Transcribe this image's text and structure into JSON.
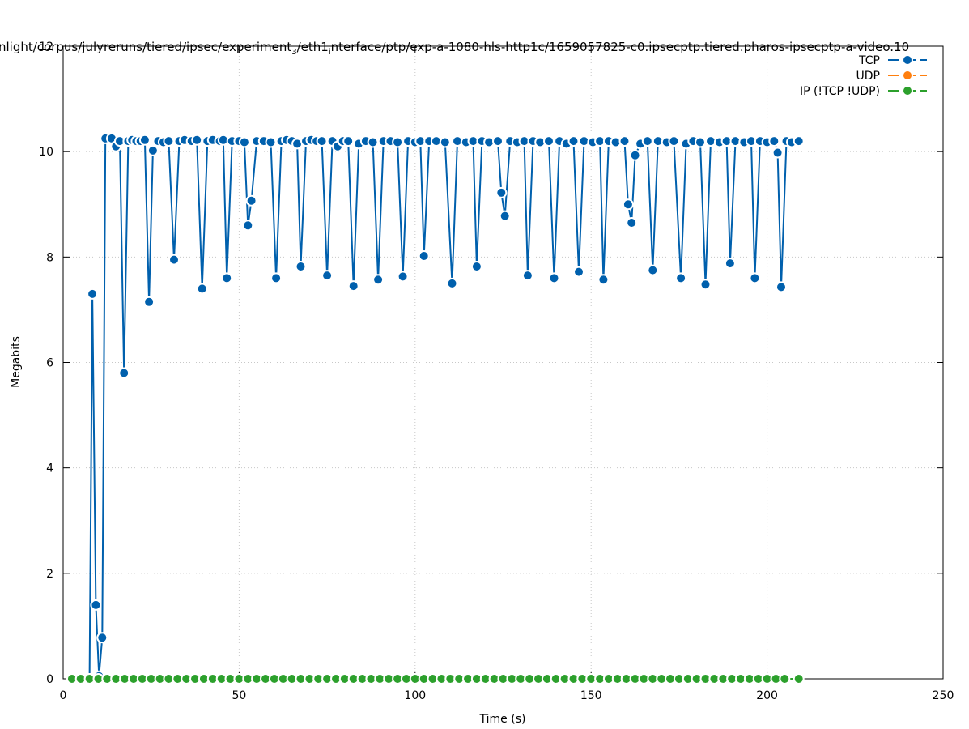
{
  "chart_data": {
    "type": "line",
    "title": "nlight/corpus/julyreruns/tiered/ipsec/experiment_3/eth1_interface/ptp/exp-a-1080-hls-http1c/1659057825-c0.ipsecptp.tiered.pharos-ipsecptp-a-video.10",
    "title_parts": {
      "a": "nlight/corpus/julyreruns/tiered/ipsec/experiment",
      "a_sub": "3",
      "b": "/eth1",
      "b_sub": "i",
      "c": "nterface/ptp/exp-a-1080-hls-http1c/1659057825-c0.ipsecptp.tiered.pharos-ipsecptp-a-video.10"
    },
    "xlabel": "Time (s)",
    "ylabel": "Megabits",
    "xlim": [
      0,
      250
    ],
    "ylim": [
      0,
      12
    ],
    "x_ticks": [
      0,
      50,
      100,
      150,
      200,
      250
    ],
    "y_ticks": [
      0,
      2,
      4,
      6,
      8,
      10,
      12
    ],
    "grid": true,
    "legend_position": "top-right",
    "series": [
      {
        "name": "TCP",
        "color": "#0060ad",
        "points": [
          [
            7.5,
            0.0
          ],
          [
            8.3,
            7.3
          ],
          [
            9.3,
            1.4
          ],
          [
            10.2,
            0.05
          ],
          [
            11.1,
            0.78
          ],
          [
            12.0,
            10.25
          ],
          [
            13.8,
            10.25
          ],
          [
            15.0,
            10.1
          ],
          [
            16.1,
            10.2
          ],
          [
            17.3,
            5.8
          ],
          [
            18.5,
            10.2
          ],
          [
            19.6,
            10.22
          ],
          [
            20.8,
            10.2
          ],
          [
            22.0,
            10.2
          ],
          [
            23.2,
            10.22
          ],
          [
            24.4,
            7.15
          ],
          [
            25.5,
            10.02
          ],
          [
            27.0,
            10.2
          ],
          [
            28.5,
            10.18
          ],
          [
            30.0,
            10.2
          ],
          [
            31.5,
            7.95
          ],
          [
            33.0,
            10.2
          ],
          [
            34.5,
            10.22
          ],
          [
            36.5,
            10.2
          ],
          [
            38.0,
            10.22
          ],
          [
            39.5,
            7.4
          ],
          [
            41.0,
            10.2
          ],
          [
            42.5,
            10.22
          ],
          [
            44.5,
            10.2
          ],
          [
            45.5,
            10.22
          ],
          [
            46.5,
            7.6
          ],
          [
            48.0,
            10.2
          ],
          [
            50.0,
            10.2
          ],
          [
            51.5,
            10.18
          ],
          [
            52.5,
            8.6
          ],
          [
            53.5,
            9.07
          ],
          [
            55.0,
            10.2
          ],
          [
            57.0,
            10.2
          ],
          [
            59.0,
            10.18
          ],
          [
            60.5,
            7.6
          ],
          [
            62.0,
            10.2
          ],
          [
            63.5,
            10.22
          ],
          [
            65.0,
            10.2
          ],
          [
            66.5,
            10.15
          ],
          [
            67.5,
            7.82
          ],
          [
            69.0,
            10.2
          ],
          [
            70.5,
            10.22
          ],
          [
            72.0,
            10.2
          ],
          [
            73.5,
            10.2
          ],
          [
            75.0,
            7.65
          ],
          [
            76.5,
            10.2
          ],
          [
            78.0,
            10.1
          ],
          [
            79.5,
            10.2
          ],
          [
            81.0,
            10.2
          ],
          [
            82.5,
            7.45
          ],
          [
            84.0,
            10.15
          ],
          [
            86.0,
            10.2
          ],
          [
            88.0,
            10.18
          ],
          [
            89.5,
            7.57
          ],
          [
            91.0,
            10.2
          ],
          [
            93.0,
            10.2
          ],
          [
            95.0,
            10.18
          ],
          [
            96.5,
            7.63
          ],
          [
            98.0,
            10.2
          ],
          [
            100.0,
            10.18
          ],
          [
            101.5,
            10.2
          ],
          [
            102.5,
            8.02
          ],
          [
            104.0,
            10.2
          ],
          [
            106.0,
            10.2
          ],
          [
            108.5,
            10.18
          ],
          [
            110.5,
            7.5
          ],
          [
            112.0,
            10.2
          ],
          [
            114.5,
            10.18
          ],
          [
            116.5,
            10.2
          ],
          [
            117.5,
            7.82
          ],
          [
            119.0,
            10.2
          ],
          [
            121.0,
            10.18
          ],
          [
            123.5,
            10.2
          ],
          [
            124.5,
            9.22
          ],
          [
            125.5,
            8.78
          ],
          [
            127.0,
            10.2
          ],
          [
            129.0,
            10.18
          ],
          [
            131.0,
            10.2
          ],
          [
            132.0,
            7.65
          ],
          [
            133.5,
            10.2
          ],
          [
            135.5,
            10.18
          ],
          [
            138.0,
            10.2
          ],
          [
            139.5,
            7.6
          ],
          [
            141.0,
            10.2
          ],
          [
            143.0,
            10.15
          ],
          [
            145.0,
            10.2
          ],
          [
            146.5,
            7.72
          ],
          [
            148.0,
            10.2
          ],
          [
            150.5,
            10.18
          ],
          [
            152.5,
            10.2
          ],
          [
            153.5,
            7.57
          ],
          [
            155.0,
            10.2
          ],
          [
            157.0,
            10.18
          ],
          [
            159.5,
            10.2
          ],
          [
            160.5,
            9.0
          ],
          [
            161.5,
            8.65
          ],
          [
            162.5,
            9.93
          ],
          [
            164.0,
            10.15
          ],
          [
            166.0,
            10.2
          ],
          [
            167.5,
            7.75
          ],
          [
            169.0,
            10.2
          ],
          [
            171.5,
            10.18
          ],
          [
            173.5,
            10.2
          ],
          [
            175.5,
            7.6
          ],
          [
            177.0,
            10.15
          ],
          [
            179.0,
            10.2
          ],
          [
            181.0,
            10.18
          ],
          [
            182.5,
            7.48
          ],
          [
            184.0,
            10.2
          ],
          [
            186.5,
            10.18
          ],
          [
            188.5,
            10.2
          ],
          [
            189.5,
            7.88
          ],
          [
            191.0,
            10.2
          ],
          [
            193.5,
            10.18
          ],
          [
            195.5,
            10.2
          ],
          [
            196.5,
            7.6
          ],
          [
            198.0,
            10.2
          ],
          [
            200.0,
            10.18
          ],
          [
            202.0,
            10.2
          ],
          [
            203.0,
            9.98
          ],
          [
            204.0,
            7.43
          ],
          [
            205.5,
            10.2
          ],
          [
            207.0,
            10.18
          ],
          [
            209.0,
            10.2
          ]
        ]
      },
      {
        "name": "UDP",
        "color": "#ff7f0e",
        "points": []
      },
      {
        "name": "IP (!TCP  !UDP)",
        "color": "#2ca02c",
        "points": [
          [
            2.5,
            0.0
          ],
          [
            5.0,
            0.0
          ],
          [
            7.5,
            0.0
          ],
          [
            10.0,
            0.0
          ],
          [
            12.5,
            0.0
          ],
          [
            15.0,
            0.0
          ],
          [
            17.5,
            0.0
          ],
          [
            20.0,
            0.0
          ],
          [
            22.5,
            0.0
          ],
          [
            25.0,
            0.0
          ],
          [
            27.5,
            0.0
          ],
          [
            30.0,
            0.0
          ],
          [
            32.5,
            0.0
          ],
          [
            35.0,
            0.0
          ],
          [
            37.5,
            0.0
          ],
          [
            40.0,
            0.0
          ],
          [
            42.5,
            0.0
          ],
          [
            45.0,
            0.0
          ],
          [
            47.5,
            0.0
          ],
          [
            50.0,
            0.0
          ],
          [
            52.5,
            0.0
          ],
          [
            55.0,
            0.0
          ],
          [
            57.5,
            0.0
          ],
          [
            60.0,
            0.0
          ],
          [
            62.5,
            0.0
          ],
          [
            65.0,
            0.0
          ],
          [
            67.5,
            0.0
          ],
          [
            70.0,
            0.0
          ],
          [
            72.5,
            0.0
          ],
          [
            75.0,
            0.0
          ],
          [
            77.5,
            0.0
          ],
          [
            80.0,
            0.0
          ],
          [
            82.5,
            0.0
          ],
          [
            85.0,
            0.0
          ],
          [
            87.5,
            0.0
          ],
          [
            90.0,
            0.0
          ],
          [
            92.5,
            0.0
          ],
          [
            95.0,
            0.0
          ],
          [
            97.5,
            0.0
          ],
          [
            100.0,
            0.0
          ],
          [
            102.5,
            0.0
          ],
          [
            105.0,
            0.0
          ],
          [
            107.5,
            0.0
          ],
          [
            110.0,
            0.0
          ],
          [
            112.5,
            0.0
          ],
          [
            115.0,
            0.0
          ],
          [
            117.5,
            0.0
          ],
          [
            120.0,
            0.0
          ],
          [
            122.5,
            0.0
          ],
          [
            125.0,
            0.0
          ],
          [
            127.5,
            0.0
          ],
          [
            130.0,
            0.0
          ],
          [
            132.5,
            0.0
          ],
          [
            135.0,
            0.0
          ],
          [
            137.5,
            0.0
          ],
          [
            140.0,
            0.0
          ],
          [
            142.5,
            0.0
          ],
          [
            145.0,
            0.0
          ],
          [
            147.5,
            0.0
          ],
          [
            150.0,
            0.0
          ],
          [
            152.5,
            0.0
          ],
          [
            155.0,
            0.0
          ],
          [
            157.5,
            0.0
          ],
          [
            160.0,
            0.0
          ],
          [
            162.5,
            0.0
          ],
          [
            165.0,
            0.0
          ],
          [
            167.5,
            0.0
          ],
          [
            170.0,
            0.0
          ],
          [
            172.5,
            0.0
          ],
          [
            175.0,
            0.0
          ],
          [
            177.5,
            0.0
          ],
          [
            180.0,
            0.0
          ],
          [
            182.5,
            0.0
          ],
          [
            185.0,
            0.0
          ],
          [
            187.5,
            0.0
          ],
          [
            190.0,
            0.0
          ],
          [
            192.5,
            0.0
          ],
          [
            195.0,
            0.0
          ],
          [
            197.5,
            0.0
          ],
          [
            200.0,
            0.0
          ],
          [
            202.5,
            0.0
          ],
          [
            205.0,
            0.0
          ],
          [
            209.0,
            0.0
          ]
        ]
      }
    ]
  }
}
